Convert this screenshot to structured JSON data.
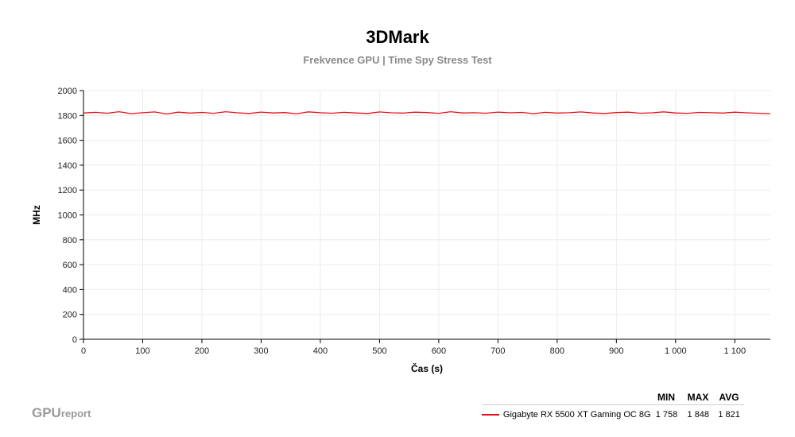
{
  "chart_data": {
    "type": "line",
    "title": "3DMark",
    "subtitle": "Frekvence GPU | Time Spy Stress Test",
    "xlabel": "Čas (s)",
    "ylabel": "MHz",
    "xlim": [
      0,
      1160
    ],
    "ylim": [
      0,
      2000
    ],
    "x_ticks": [
      0,
      100,
      200,
      300,
      400,
      500,
      600,
      700,
      800,
      900,
      1000,
      1100
    ],
    "x_tick_labels": [
      "0",
      "100",
      "200",
      "300",
      "400",
      "500",
      "600",
      "700",
      "800",
      "900",
      "1 000",
      "1 100"
    ],
    "y_ticks": [
      0,
      200,
      400,
      600,
      800,
      1000,
      1200,
      1400,
      1600,
      1800,
      2000
    ],
    "y_tick_labels": [
      "0",
      "200",
      "400",
      "600",
      "800",
      "1000",
      "1200",
      "1400",
      "1600",
      "1800",
      "2000"
    ],
    "grid": true,
    "legend_position": "bottom-right",
    "series": [
      {
        "name": "Gigabyte RX 5500 XT Gaming OC 8G",
        "color": "#e8131a",
        "x": [
          0,
          20,
          40,
          60,
          80,
          100,
          120,
          140,
          160,
          180,
          200,
          220,
          240,
          260,
          280,
          300,
          320,
          340,
          360,
          380,
          400,
          420,
          440,
          460,
          480,
          500,
          520,
          540,
          560,
          580,
          600,
          620,
          640,
          660,
          680,
          700,
          720,
          740,
          760,
          780,
          800,
          820,
          840,
          860,
          880,
          900,
          920,
          940,
          960,
          980,
          1000,
          1020,
          1040,
          1060,
          1080,
          1100,
          1120,
          1140,
          1160
        ],
        "values": [
          1820,
          1825,
          1818,
          1830,
          1815,
          1822,
          1828,
          1812,
          1826,
          1819,
          1824,
          1817,
          1830,
          1821,
          1816,
          1827,
          1820,
          1823,
          1814,
          1829,
          1822,
          1818,
          1825,
          1820,
          1816,
          1828,
          1821,
          1819,
          1826,
          1823,
          1817,
          1830,
          1820,
          1822,
          1818,
          1827,
          1821,
          1824,
          1815,
          1825,
          1819,
          1822,
          1828,
          1820,
          1816,
          1823,
          1826,
          1818,
          1821,
          1829,
          1820,
          1817,
          1824,
          1822,
          1819,
          1826,
          1821,
          1818,
          1815
        ]
      }
    ],
    "stats_headers": [
      "MIN",
      "MAX",
      "AVG"
    ],
    "stats": [
      {
        "min": "1 758",
        "max": "1 848",
        "avg": "1 821"
      }
    ]
  },
  "branding": {
    "logo_main": "GPU",
    "logo_sub": "report"
  }
}
